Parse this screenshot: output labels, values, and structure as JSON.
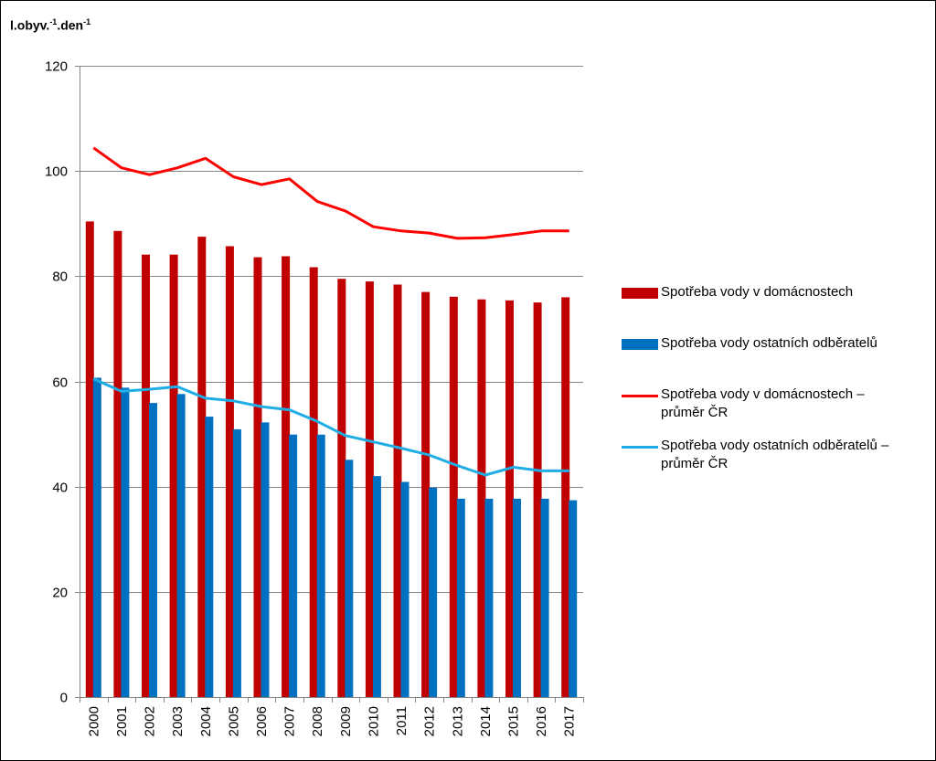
{
  "chart_data": {
    "type": "bar",
    "ylabel_base": "l.obyv.",
    "ylabel_sup1": "-1",
    "ylabel_mid": ".den",
    "ylabel_sup2": "-1",
    "ylim": [
      0,
      120
    ],
    "yticks": [
      "0",
      "20",
      "40",
      "60",
      "80",
      "100",
      "120"
    ],
    "grid": true,
    "categories": [
      "2000",
      "2001",
      "2002",
      "2003",
      "2004",
      "2005",
      "2006",
      "2007",
      "2008",
      "2009",
      "2010",
      "2011",
      "2012",
      "2013",
      "2014",
      "2015",
      "2016",
      "2017"
    ],
    "series": [
      {
        "name": "Spotřeba vody v domácnostech",
        "kind": "bar",
        "color": "#c00000",
        "values": [
          90.4,
          88.6,
          84.1,
          84.1,
          87.5,
          85.7,
          83.6,
          83.8,
          81.7,
          79.5,
          79.0,
          78.4,
          77.0,
          76.1,
          75.6,
          75.4,
          75.0,
          76.0
        ]
      },
      {
        "name": "Spotřeba vody ostatních odběratelů",
        "kind": "bar",
        "color": "#0070c0",
        "values": [
          60.7,
          58.8,
          55.9,
          57.6,
          53.3,
          50.9,
          52.2,
          49.9,
          49.9,
          45.1,
          42.0,
          40.9,
          39.8,
          37.7,
          37.7,
          37.7,
          37.7,
          37.4
        ]
      },
      {
        "name": "Spotřeba vody v domácnostech – průměr ČR",
        "kind": "line",
        "color": "#ff0000",
        "values": [
          104.4,
          100.6,
          99.3,
          100.6,
          102.4,
          98.9,
          97.4,
          98.5,
          94.2,
          92.4,
          89.4,
          88.6,
          88.2,
          87.2,
          87.3,
          87.9,
          88.6,
          88.6
        ]
      },
      {
        "name": "Spotřeba vody ostatních odběratelů – průměr ČR",
        "kind": "line",
        "color": "#1eaee5",
        "values": [
          60.5,
          58.1,
          58.5,
          59.0,
          56.8,
          56.3,
          55.2,
          54.6,
          52.4,
          49.7,
          48.5,
          47.3,
          46.0,
          44.0,
          42.2,
          43.7,
          43.0,
          43.0
        ]
      }
    ],
    "legend": {
      "position": "right",
      "items": [
        {
          "line1": "Spotřeba vody v domácnostech",
          "line2": ""
        },
        {
          "line1": "Spotřeba vody ostatních odběratelů",
          "line2": ""
        },
        {
          "line1": "Spotřeba vody v domácnostech –",
          "line2": "průměr ČR"
        },
        {
          "line1": "Spotřeba vody ostatních odběratelů –",
          "line2": "průměr ČR"
        }
      ]
    }
  }
}
